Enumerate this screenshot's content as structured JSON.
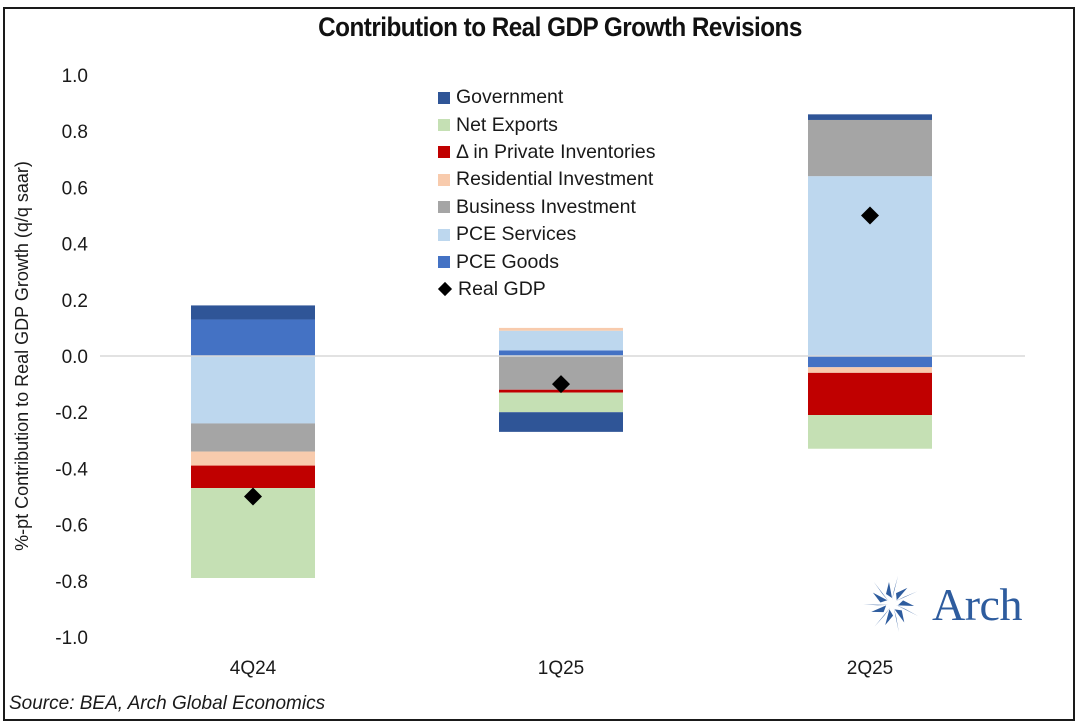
{
  "chart_data": {
    "type": "bar",
    "stacked": true,
    "title": "Contribution to Real GDP Growth Revisions",
    "xlabel": "",
    "ylabel": "%-pt Contribution to Real GDP Growth (q/q saar)",
    "ylim": [
      -1.0,
      1.0
    ],
    "yticks": [
      "1.0",
      "0.8",
      "0.6",
      "0.4",
      "0.2",
      "0.0",
      "-0.2",
      "-0.4",
      "-0.6",
      "-0.8",
      "-1.0"
    ],
    "ytick_values": [
      1.0,
      0.8,
      0.6,
      0.4,
      0.2,
      0.0,
      -0.2,
      -0.4,
      -0.6,
      -0.8,
      -1.0
    ],
    "categories": [
      "4Q24",
      "1Q25",
      "2Q25"
    ],
    "grid": false,
    "legend_position": "top-center",
    "series": [
      {
        "name": "PCE Goods",
        "color": "#4472c4",
        "values": [
          0.13,
          0.02,
          -0.04
        ]
      },
      {
        "name": "PCE Services",
        "color": "#bdd7ee",
        "values": [
          -0.24,
          0.07,
          0.64
        ]
      },
      {
        "name": "Business Investment",
        "color": "#a5a5a5",
        "values": [
          -0.1,
          -0.12,
          0.2
        ]
      },
      {
        "name": "Residential Investment",
        "color": "#f8cbad",
        "values": [
          -0.05,
          0.01,
          -0.02
        ]
      },
      {
        "name": "Δ in Private Inventories",
        "color": "#c00000",
        "values": [
          -0.08,
          -0.01,
          -0.15
        ]
      },
      {
        "name": "Net Exports",
        "color": "#c5e0b4",
        "values": [
          -0.32,
          -0.07,
          -0.12
        ]
      },
      {
        "name": "Government",
        "color": "#2f5597",
        "values": [
          0.05,
          -0.07,
          0.02
        ]
      }
    ],
    "line_series": {
      "name": "Real GDP",
      "marker": "diamond",
      "color": "#000000",
      "values": [
        -0.5,
        -0.1,
        0.5
      ]
    },
    "legend": [
      "Government",
      "Net Exports",
      "Δ in Private Inventories",
      "Residential Investment",
      "Business Investment",
      "PCE Services",
      "PCE Goods",
      "Real GDP"
    ]
  },
  "source": "Source: BEA, Arch Global Economics",
  "logo": {
    "text": "Arch",
    "icon": "arch-star-icon",
    "color": "#2e5c9e"
  }
}
